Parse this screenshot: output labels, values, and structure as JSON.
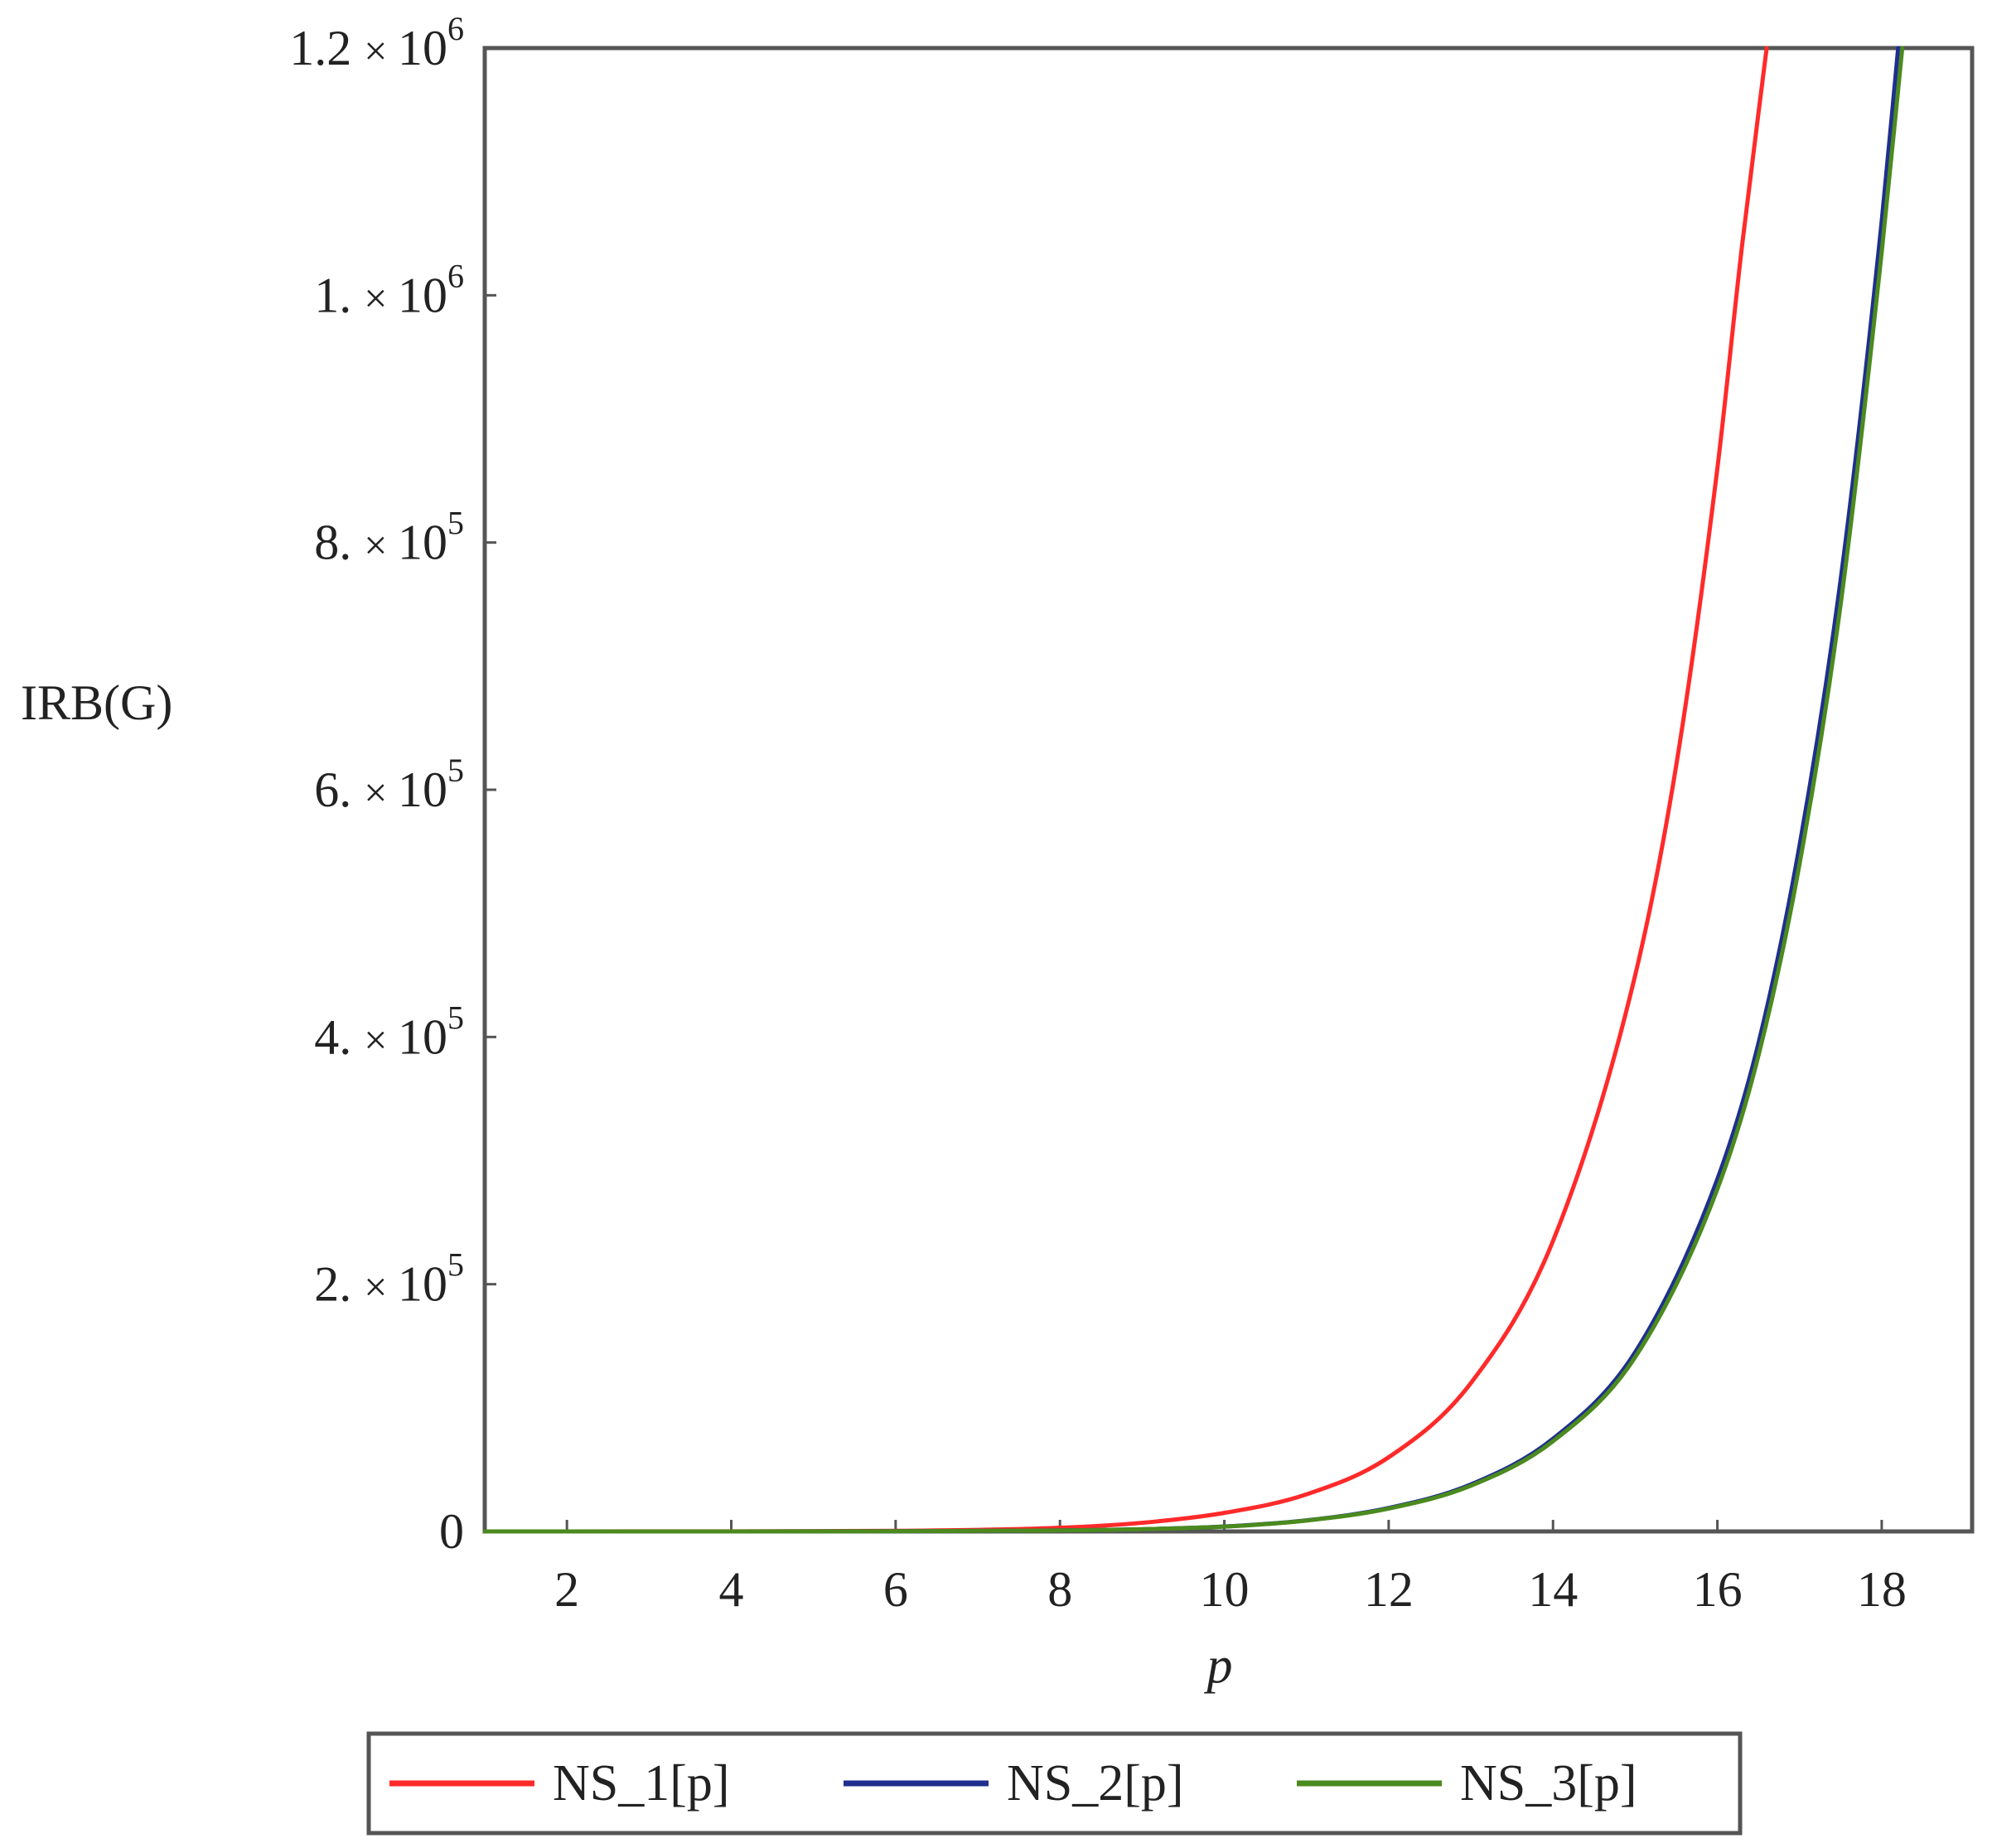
{
  "chart_data": {
    "type": "line",
    "title": "",
    "xlabel": "p",
    "ylabel": "IRB(G)",
    "xlim": [
      1,
      19.1
    ],
    "ylim": [
      0,
      1200000
    ],
    "grid": false,
    "legend_position": "bottom",
    "x_ticks": [
      2,
      4,
      6,
      8,
      10,
      12,
      14,
      16,
      18
    ],
    "x_tick_labels": [
      "2",
      "4",
      "6",
      "8",
      "10",
      "12",
      "14",
      "16",
      "18"
    ],
    "y_ticks": [
      {
        "value": 0,
        "mantissa": "0",
        "times": "",
        "base": "",
        "exponent": ""
      },
      {
        "value": 200000,
        "mantissa": "2.",
        "times": "×",
        "base": "10",
        "exponent": "5"
      },
      {
        "value": 400000,
        "mantissa": "4.",
        "times": "×",
        "base": "10",
        "exponent": "5"
      },
      {
        "value": 600000,
        "mantissa": "6.",
        "times": "×",
        "base": "10",
        "exponent": "5"
      },
      {
        "value": 800000,
        "mantissa": "8.",
        "times": "×",
        "base": "10",
        "exponent": "5"
      },
      {
        "value": 1000000,
        "mantissa": "1.",
        "times": "×",
        "base": "10",
        "exponent": "6"
      },
      {
        "value": 1200000,
        "mantissa": "1.2",
        "times": "×",
        "base": "10",
        "exponent": "6"
      }
    ],
    "series": [
      {
        "name": "NS_1[p]",
        "color": "#ff2a2a",
        "x": [
          1,
          2,
          4,
          6,
          8,
          9,
          10,
          11,
          12,
          13,
          14,
          15,
          15.5,
          16,
          16.3,
          16.6
        ],
        "y": [
          0,
          15,
          100,
          500,
          3000,
          7000,
          15000,
          30000,
          60000,
          120000,
          235000,
          450000,
          620000,
          860000,
          1040000,
          1200000
        ]
      },
      {
        "name": "NS_2[p]",
        "color": "#1f2f8f",
        "x": [
          1,
          2,
          4,
          6,
          8,
          9,
          10,
          11,
          12,
          13,
          14,
          15,
          16,
          16.5,
          17,
          17.5,
          18,
          18.2
        ],
        "y": [
          0,
          5,
          30,
          150,
          800,
          1800,
          4000,
          9000,
          19000,
          38000,
          75000,
          145000,
          285000,
          395000,
          555000,
          770000,
          1060000,
          1200000
        ]
      },
      {
        "name": "NS_3[p]",
        "color": "#4b8a1e",
        "x": [
          1,
          2,
          4,
          6,
          8,
          9,
          10,
          11,
          12,
          13,
          14,
          15,
          16,
          16.5,
          17,
          17.5,
          18,
          18.25
        ],
        "y": [
          0,
          5,
          30,
          150,
          800,
          1800,
          3900,
          8800,
          18500,
          37000,
          73000,
          141000,
          277000,
          385000,
          540000,
          750000,
          1035000,
          1200000
        ]
      }
    ]
  }
}
